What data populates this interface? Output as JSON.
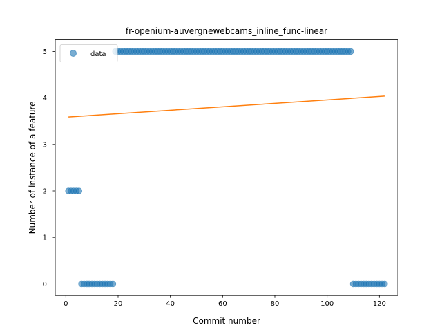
{
  "chart_data": {
    "type": "scatter",
    "title": "fr-openium-auvergnewebcams_inline_func-linear",
    "xlabel": "Commit number",
    "ylabel": "Number of instance of a feature",
    "xlim": [
      -4.05,
      127.05
    ],
    "ylim": [
      -0.25,
      5.25
    ],
    "xticks": [
      0,
      20,
      40,
      60,
      80,
      100,
      120
    ],
    "yticks": [
      0,
      1,
      2,
      3,
      4,
      5
    ],
    "grid": false,
    "legend_position": "top-left",
    "series": [
      {
        "name": "data",
        "kind": "scatter",
        "color": "#1f77b4",
        "segments": [
          {
            "x_start": 1,
            "x_end": 5,
            "y": 2
          },
          {
            "x_start": 6,
            "x_end": 18,
            "y": 0
          },
          {
            "x_start": 19,
            "x_end": 109,
            "y": 5
          },
          {
            "x_start": 110,
            "x_end": 122,
            "y": 0
          }
        ]
      },
      {
        "kind": "line",
        "color": "#ff7f0e",
        "x": [
          1,
          122
        ],
        "y": [
          3.59,
          4.04
        ]
      }
    ]
  }
}
